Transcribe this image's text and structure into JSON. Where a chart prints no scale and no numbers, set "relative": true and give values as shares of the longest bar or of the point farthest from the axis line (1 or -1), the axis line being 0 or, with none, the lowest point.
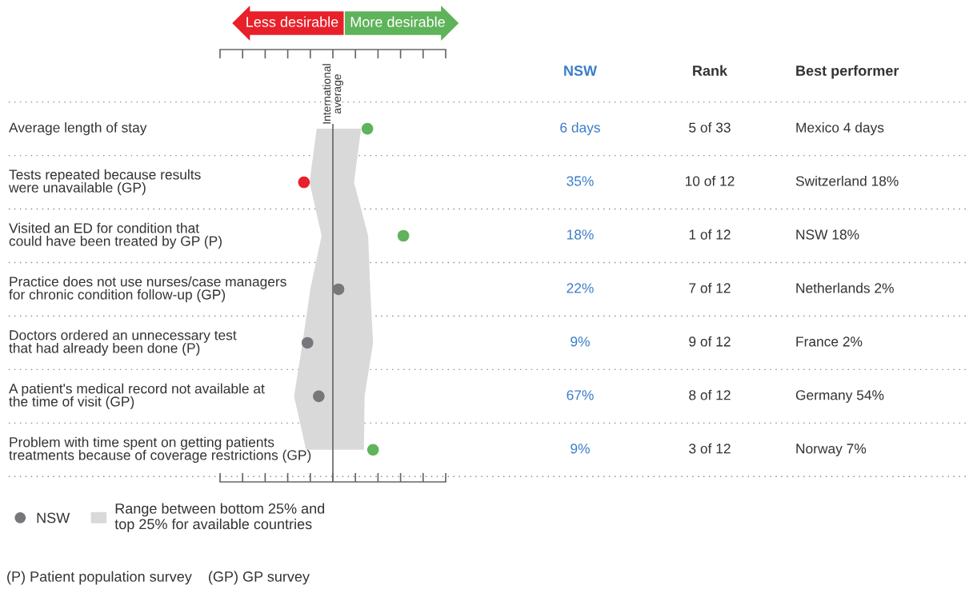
{
  "chart_data": {
    "type": "scatter",
    "orientation": "horizontal",
    "relative": true,
    "categories": [
      "Average length of stay",
      "Tests repeated because results\nwere unavailable (GP)",
      "Visited an ED for condition that\ncould have been treated by GP (P)",
      "Practice does not use nurses/case managers\nfor chronic condition follow-up (GP)",
      "Doctors ordered an unnecessary test\nthat had already been done (P)",
      "A patient's medical record not available at\nthe time of visit (GP)",
      "Problem with time spent on getting patients\ntreatments because of coverage restrictions (GP)"
    ],
    "series": [
      {
        "name": "Range between bottom 25% and\ntop 25% for available countries",
        "type": "area",
        "color": "#d9d9d9",
        "values": [
          null,
          null,
          null,
          null,
          null,
          null,
          null
        ],
        "lower": [
          -0.23,
          -0.33,
          -0.16,
          -0.32,
          -0.43,
          -0.55,
          -0.38
        ],
        "upper": [
          0.4,
          0.3,
          0.5,
          0.53,
          0.57,
          0.45,
          0.44
        ]
      },
      {
        "name": "NSW",
        "color": "#77777b",
        "colors": [
          "#5fb35a",
          "#e8202a",
          "#5fb35a",
          "#77777b",
          "#77777b",
          "#77777b",
          "#5fb35a"
        ],
        "values": [
          0.49,
          -0.41,
          1,
          0.08,
          -0.36,
          -0.2,
          0.57
        ]
      }
    ],
    "ref_lines": [
      {
        "axis": "x",
        "value": 0,
        "label": "International\naverage",
        "color": "#666666"
      }
    ],
    "annotations": [
      "Less desirable",
      "More desirable",
      "NSW",
      "Rank",
      "Best performer",
      "6 days",
      "35%",
      "18%",
      "22%",
      "9%",
      "67%",
      "9%",
      "5 of 33",
      "10 of 12",
      "1 of 12",
      "7 of 12",
      "9 of 12",
      "8 of 12",
      "3 of 12",
      "Mexico 4 days",
      "Switzerland 18%",
      "NSW 18%",
      "Netherlands 2%",
      "France 2%",
      "Germany 54%",
      "Norway 7%",
      "(P) Patient population survey    (GP) GP survey"
    ],
    "marker": "circle",
    "legend": "bottom left",
    "grid": false
  }
}
